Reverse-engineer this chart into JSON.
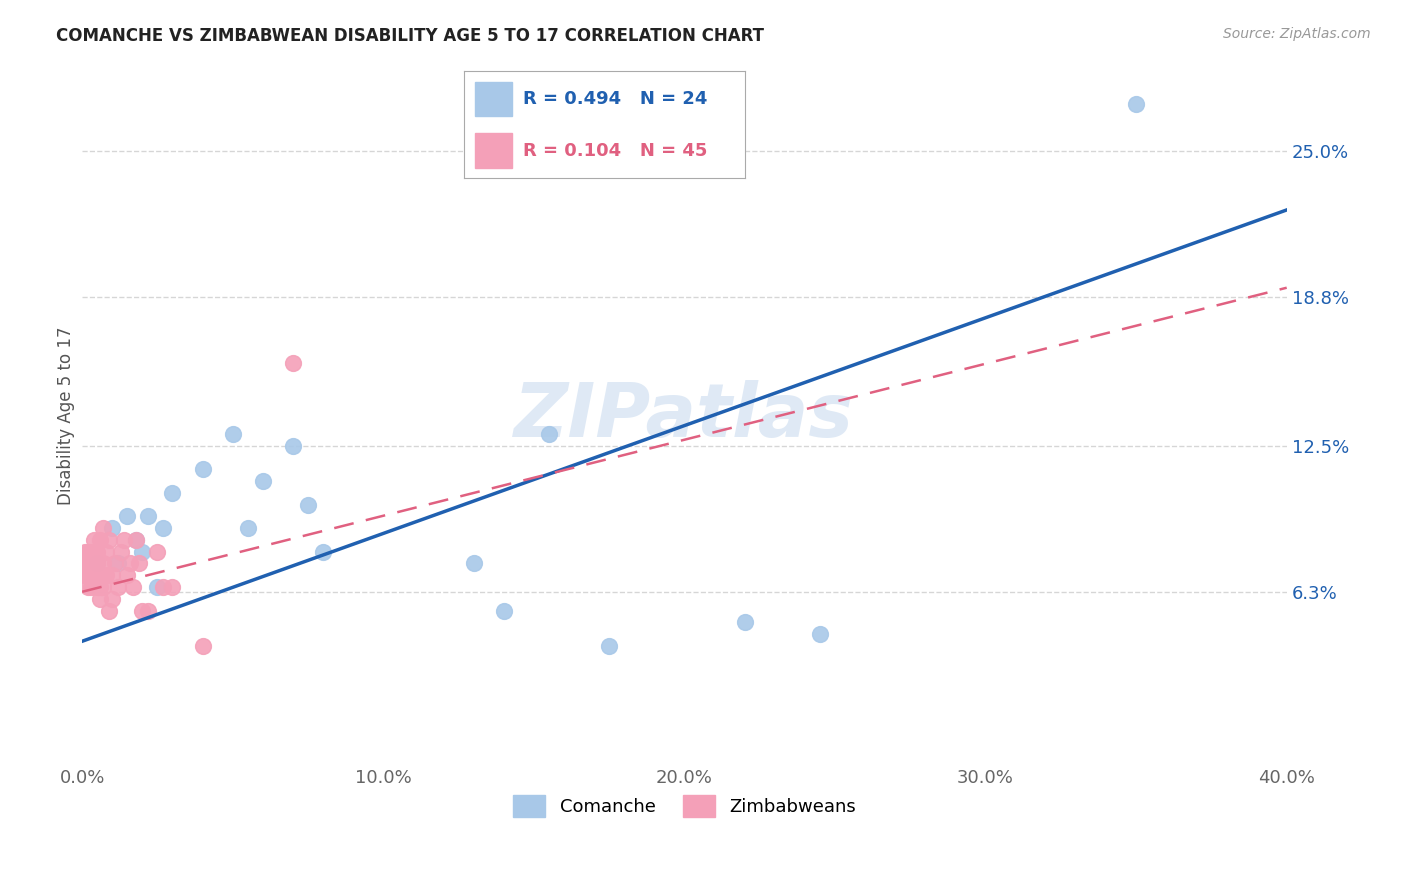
{
  "title": "COMANCHE VS ZIMBABWEAN DISABILITY AGE 5 TO 17 CORRELATION CHART",
  "source": "Source: ZipAtlas.com",
  "ylabel": "Disability Age 5 to 17",
  "xlim": [
    0.0,
    0.4
  ],
  "ylim": [
    -0.01,
    0.285
  ],
  "xticks": [
    0.0,
    0.1,
    0.2,
    0.3,
    0.4
  ],
  "xtick_labels": [
    "0.0%",
    "10.0%",
    "20.0%",
    "30.0%",
    "40.0%"
  ],
  "yticks": [
    0.063,
    0.125,
    0.188,
    0.25
  ],
  "ytick_labels": [
    "6.3%",
    "12.5%",
    "18.8%",
    "25.0%"
  ],
  "comanche_color": "#a8c8e8",
  "zimbabwean_color": "#f4a0b8",
  "comanche_line_color": "#2060b0",
  "zimbabwean_line_color": "#e06080",
  "watermark": "ZIPatlas",
  "legend_r1": "R = 0.494",
  "legend_n1": "N = 24",
  "legend_r2": "R = 0.104",
  "legend_n2": "N = 45",
  "background_color": "#ffffff",
  "grid_color": "#cccccc",
  "comanche_x": [
    0.005,
    0.01,
    0.012,
    0.015,
    0.018,
    0.02,
    0.022,
    0.025,
    0.027,
    0.03,
    0.04,
    0.05,
    0.055,
    0.06,
    0.07,
    0.075,
    0.08,
    0.13,
    0.14,
    0.155,
    0.175,
    0.22,
    0.245,
    0.35
  ],
  "comanche_y": [
    0.075,
    0.09,
    0.075,
    0.095,
    0.085,
    0.08,
    0.095,
    0.065,
    0.09,
    0.105,
    0.115,
    0.13,
    0.09,
    0.11,
    0.125,
    0.1,
    0.08,
    0.075,
    0.055,
    0.13,
    0.04,
    0.05,
    0.045,
    0.27
  ],
  "zimbabwean_x": [
    0.001,
    0.001,
    0.001,
    0.002,
    0.002,
    0.002,
    0.002,
    0.003,
    0.003,
    0.003,
    0.004,
    0.004,
    0.004,
    0.005,
    0.005,
    0.005,
    0.005,
    0.006,
    0.006,
    0.006,
    0.007,
    0.007,
    0.007,
    0.008,
    0.008,
    0.009,
    0.009,
    0.01,
    0.01,
    0.011,
    0.012,
    0.013,
    0.014,
    0.015,
    0.016,
    0.017,
    0.018,
    0.019,
    0.02,
    0.022,
    0.025,
    0.027,
    0.03,
    0.04,
    0.07
  ],
  "zimbabwean_y": [
    0.075,
    0.08,
    0.07,
    0.065,
    0.07,
    0.075,
    0.08,
    0.065,
    0.07,
    0.08,
    0.075,
    0.08,
    0.085,
    0.065,
    0.07,
    0.075,
    0.08,
    0.06,
    0.065,
    0.085,
    0.065,
    0.075,
    0.09,
    0.07,
    0.08,
    0.055,
    0.085,
    0.06,
    0.07,
    0.075,
    0.065,
    0.08,
    0.085,
    0.07,
    0.075,
    0.065,
    0.085,
    0.075,
    0.055,
    0.055,
    0.08,
    0.065,
    0.065,
    0.04,
    0.16
  ],
  "blue_line_x0": 0.0,
  "blue_line_y0": 0.042,
  "blue_line_x1": 0.4,
  "blue_line_y1": 0.225,
  "pink_line_x0": 0.0,
  "pink_line_y0": 0.063,
  "pink_line_x1": 0.4,
  "pink_line_y1": 0.192
}
